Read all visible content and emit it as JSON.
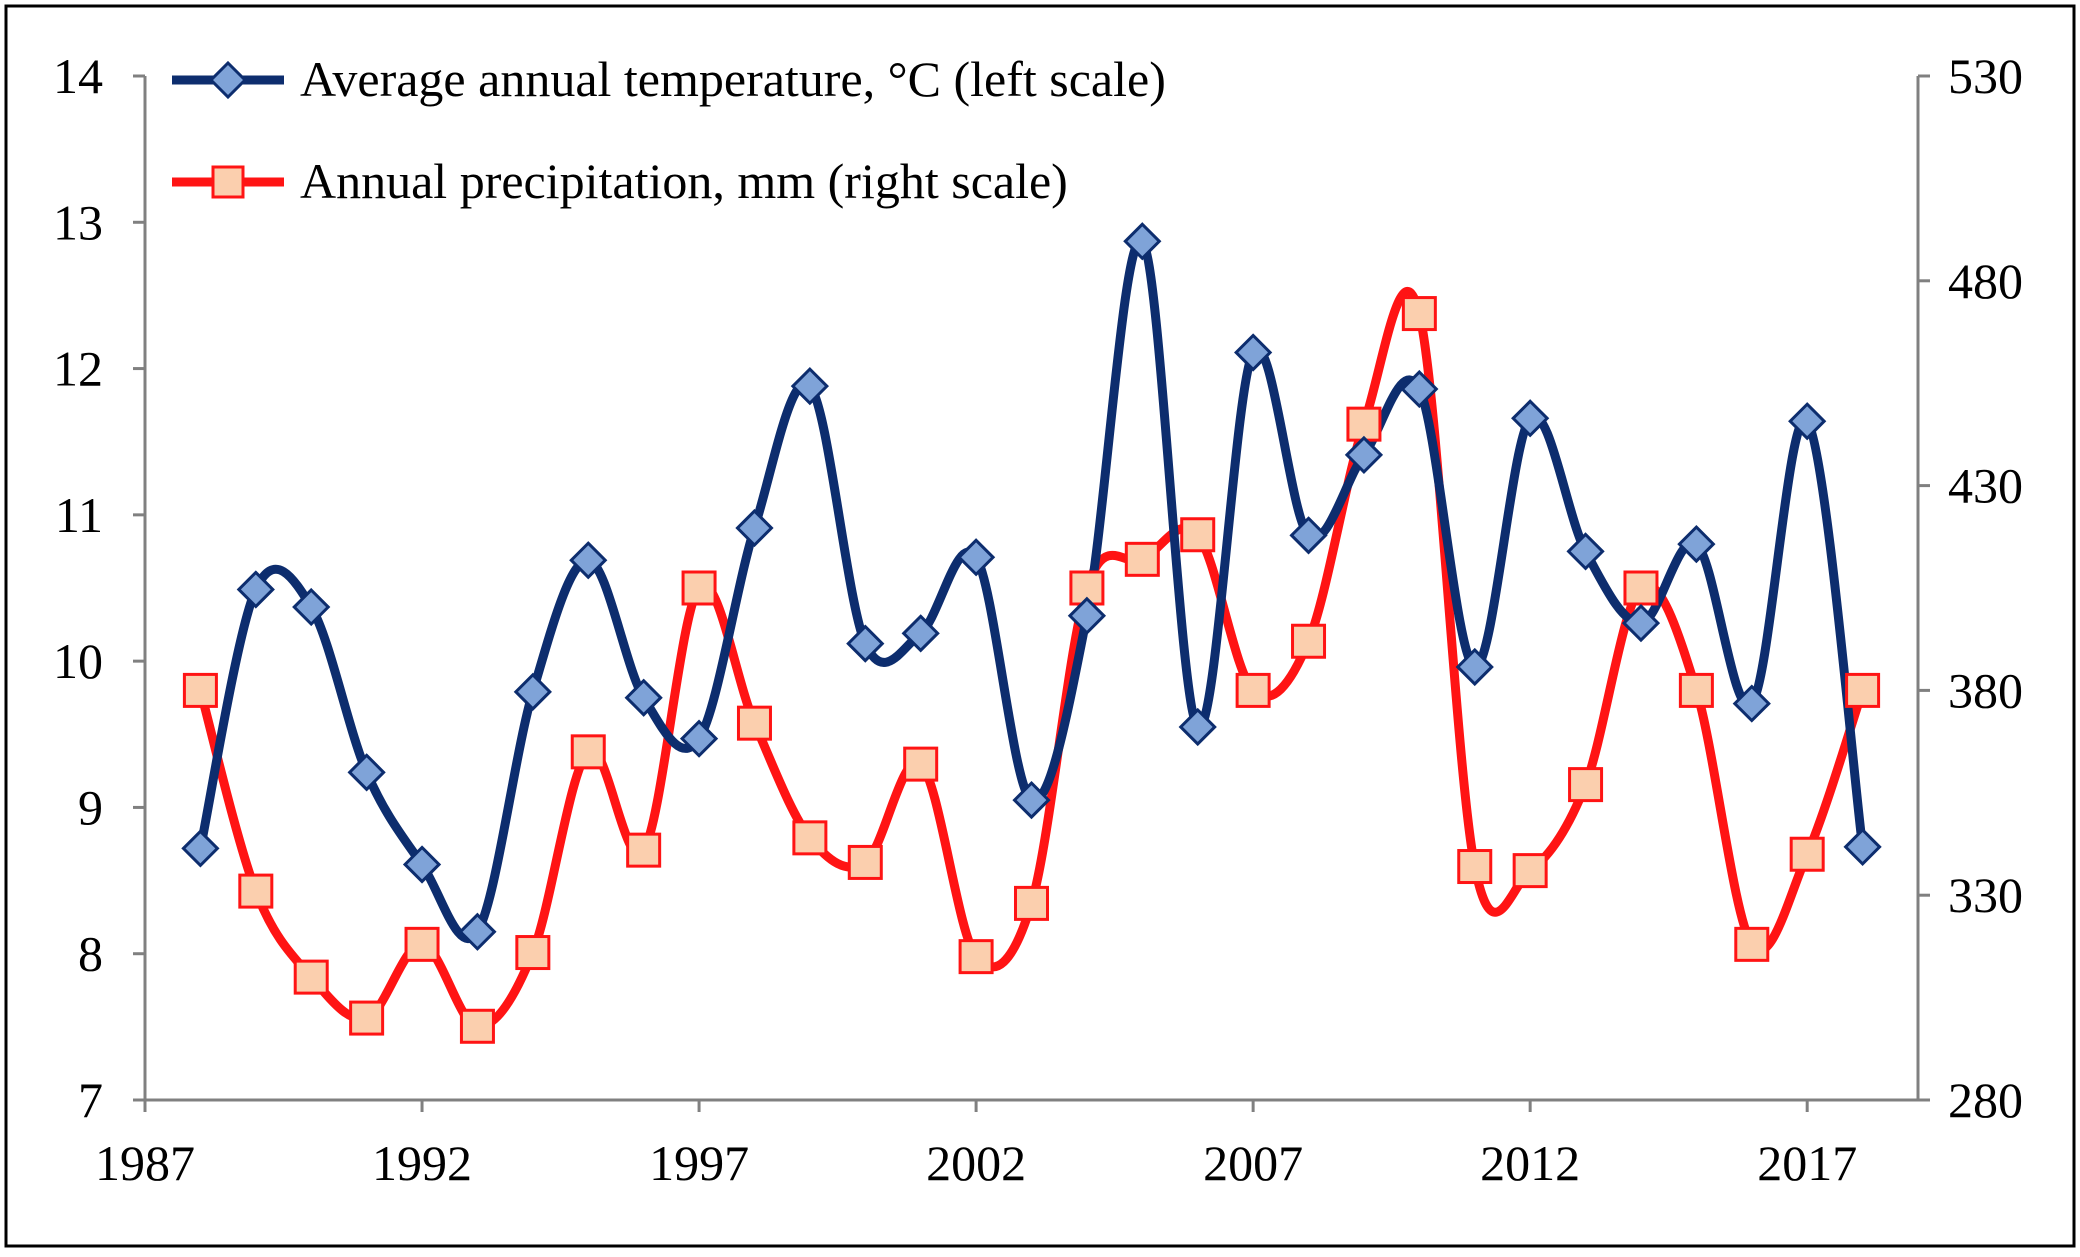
{
  "chart_data": {
    "type": "line",
    "title": "",
    "x": [
      1988,
      1989,
      1990,
      1991,
      1992,
      1993,
      1994,
      1995,
      1996,
      1997,
      1998,
      1999,
      2000,
      2001,
      2002,
      2003,
      2004,
      2005,
      2006,
      2007,
      2008,
      2009,
      2010,
      2011,
      2012,
      2013,
      2014,
      2015,
      2016,
      2017,
      2018
    ],
    "xlim": [
      1987,
      2019
    ],
    "x_ticks": [
      1987,
      1992,
      1997,
      2002,
      2007,
      2012,
      2017
    ],
    "left_axis": {
      "ylim": [
        7,
        14
      ],
      "ticks": [
        7,
        8,
        9,
        10,
        11,
        12,
        13,
        14
      ]
    },
    "right_axis": {
      "ylim": [
        280,
        530
      ],
      "ticks": [
        280,
        330,
        380,
        430,
        480,
        530
      ]
    },
    "series": [
      {
        "name": "Average annual temperature, °C (left scale)",
        "axis": "left",
        "color": "#0d2d6e",
        "marker": "diamond",
        "marker_fill": "#7fa3d8",
        "values": [
          8.72,
          10.49,
          10.37,
          9.24,
          8.61,
          8.15,
          9.79,
          10.69,
          9.75,
          9.47,
          10.91,
          11.88,
          10.12,
          10.19,
          10.71,
          9.05,
          10.31,
          12.87,
          9.55,
          12.11,
          10.86,
          11.41,
          11.86,
          9.96,
          11.66,
          10.75,
          10.26,
          10.8,
          9.71,
          11.64,
          8.73
        ]
      },
      {
        "name": "Annual precipitation, mm (right scale)",
        "axis": "right",
        "color": "#ff1414",
        "marker": "square",
        "marker_fill": "#fbcfae",
        "values": [
          380,
          331,
          310,
          300,
          318,
          298,
          316,
          365,
          341,
          405,
          372,
          344,
          338,
          362,
          315,
          328,
          405,
          412,
          418,
          380,
          392,
          445,
          472,
          337,
          336,
          357,
          405,
          380,
          318,
          340,
          380
        ]
      }
    ],
    "legend": {
      "placement": "top-left",
      "entries": [
        "Average annual temperature, °C (left scale)",
        "Annual precipitation, mm (right scale)"
      ]
    },
    "colors": {
      "axis": "#808080",
      "frame": "#000000",
      "background": "#ffffff"
    }
  }
}
